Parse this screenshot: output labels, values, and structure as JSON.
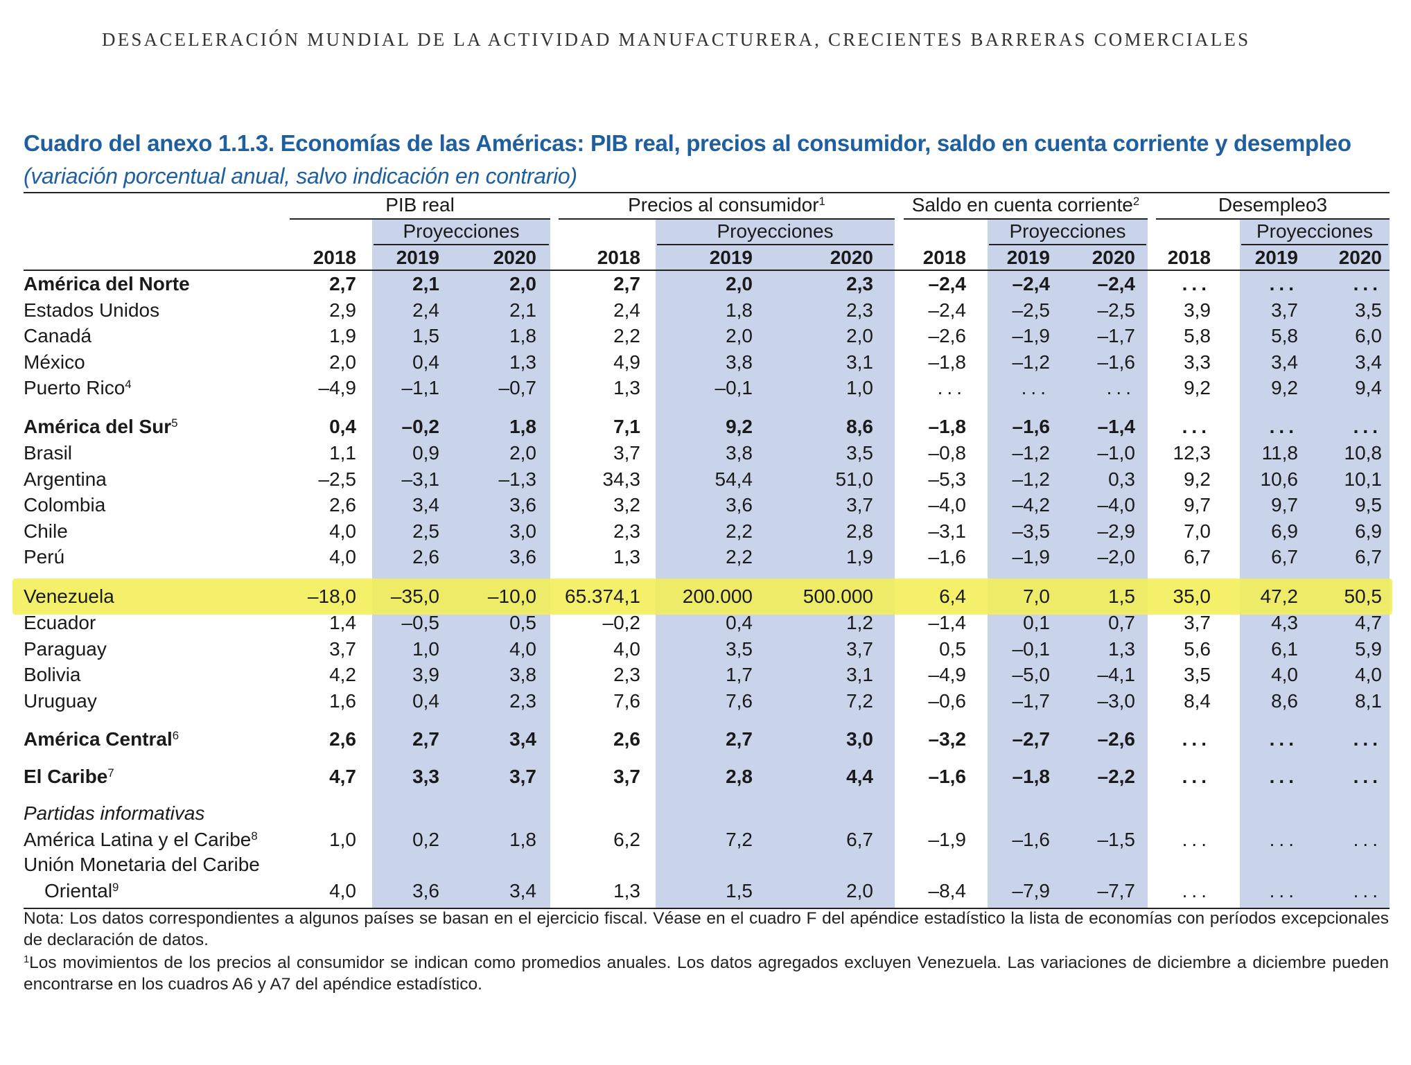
{
  "running_head": "DESACELERACIÓN MUNDIAL DE LA ACTIVIDAD MANUFACTURERA, CRECIENTES BARRERAS COMERCIALES",
  "title": "Cuadro del anexo 1.1.3. Economías de las Américas: PIB real, precios al consumidor, saldo en cuenta corriente y desempleo",
  "subtitle": "(variación porcentual anual, salvo indicación en contrario)",
  "groups": [
    {
      "label": "PIB real",
      "sup": ""
    },
    {
      "label": "Precios al consumidor",
      "sup": "1"
    },
    {
      "label": "Saldo en cuenta corriente",
      "sup": "2"
    },
    {
      "label": "Desempleo3",
      "sup": ""
    }
  ],
  "proj_label": "Proyecciones",
  "years": [
    "2018",
    "2019",
    "2020"
  ],
  "rows": [
    {
      "label": "América del Norte",
      "sup": "",
      "bold": true,
      "values": [
        "2,7",
        "2,1",
        "2,0",
        "2,7",
        "2,0",
        "2,3",
        "–2,4",
        "–2,4",
        "–2,4",
        "...",
        "...",
        "..."
      ]
    },
    {
      "label": "Estados Unidos",
      "sup": "",
      "values": [
        "2,9",
        "2,4",
        "2,1",
        "2,4",
        "1,8",
        "2,3",
        "–2,4",
        "–2,5",
        "–2,5",
        "3,9",
        "3,7",
        "3,5"
      ]
    },
    {
      "label": "Canadá",
      "sup": "",
      "values": [
        "1,9",
        "1,5",
        "1,8",
        "2,2",
        "2,0",
        "2,0",
        "–2,6",
        "–1,9",
        "–1,7",
        "5,8",
        "5,8",
        "6,0"
      ]
    },
    {
      "label": "México",
      "sup": "",
      "values": [
        "2,0",
        "0,4",
        "1,3",
        "4,9",
        "3,8",
        "3,1",
        "–1,8",
        "–1,2",
        "–1,6",
        "3,3",
        "3,4",
        "3,4"
      ]
    },
    {
      "label": "Puerto Rico",
      "sup": "4",
      "values": [
        "–4,9",
        "–1,1",
        "–0,7",
        "1,3",
        "–0,1",
        "1,0",
        "...",
        "...",
        "...",
        "9,2",
        "9,2",
        "9,4"
      ]
    },
    {
      "label": "América del Sur",
      "sup": "5",
      "bold": true,
      "values": [
        "0,4",
        "–0,2",
        "1,8",
        "7,1",
        "9,2",
        "8,6",
        "–1,8",
        "–1,6",
        "–1,4",
        "...",
        "...",
        "..."
      ]
    },
    {
      "label": "Brasil",
      "sup": "",
      "values": [
        "1,1",
        "0,9",
        "2,0",
        "3,7",
        "3,8",
        "3,5",
        "–0,8",
        "–1,2",
        "–1,0",
        "12,3",
        "11,8",
        "10,8"
      ]
    },
    {
      "label": "Argentina",
      "sup": "",
      "values": [
        "–2,5",
        "–3,1",
        "–1,3",
        "34,3",
        "54,4",
        "51,0",
        "–5,3",
        "–1,2",
        "0,3",
        "9,2",
        "10,6",
        "10,1"
      ]
    },
    {
      "label": "Colombia",
      "sup": "",
      "values": [
        "2,6",
        "3,4",
        "3,6",
        "3,2",
        "3,6",
        "3,7",
        "–4,0",
        "–4,2",
        "–4,0",
        "9,7",
        "9,7",
        "9,5"
      ]
    },
    {
      "label": "Chile",
      "sup": "",
      "values": [
        "4,0",
        "2,5",
        "3,0",
        "2,3",
        "2,2",
        "2,8",
        "–3,1",
        "–3,5",
        "–2,9",
        "7,0",
        "6,9",
        "6,9"
      ]
    },
    {
      "label": "Perú",
      "sup": "",
      "values": [
        "4,0",
        "2,6",
        "3,6",
        "1,3",
        "2,2",
        "1,9",
        "–1,6",
        "–1,9",
        "–2,0",
        "6,7",
        "6,7",
        "6,7"
      ]
    },
    {
      "label": "Venezuela",
      "sup": "",
      "highlight": true,
      "values": [
        "–18,0",
        "–35,0",
        "–10,0",
        "65.374,1",
        "200.000",
        "500.000",
        "6,4",
        "7,0",
        "1,5",
        "35,0",
        "47,2",
        "50,5"
      ]
    },
    {
      "label": "Ecuador",
      "sup": "",
      "values": [
        "1,4",
        "–0,5",
        "0,5",
        "–0,2",
        "0,4",
        "1,2",
        "–1,4",
        "0,1",
        "0,7",
        "3,7",
        "4,3",
        "4,7"
      ]
    },
    {
      "label": "Paraguay",
      "sup": "",
      "values": [
        "3,7",
        "1,0",
        "4,0",
        "4,0",
        "3,5",
        "3,7",
        "0,5",
        "–0,1",
        "1,3",
        "5,6",
        "6,1",
        "5,9"
      ]
    },
    {
      "label": "Bolivia",
      "sup": "",
      "values": [
        "4,2",
        "3,9",
        "3,8",
        "2,3",
        "1,7",
        "3,1",
        "–4,9",
        "–5,0",
        "–4,1",
        "3,5",
        "4,0",
        "4,0"
      ]
    },
    {
      "label": "Uruguay",
      "sup": "",
      "values": [
        "1,6",
        "0,4",
        "2,3",
        "7,6",
        "7,6",
        "7,2",
        "–0,6",
        "–1,7",
        "–3,0",
        "8,4",
        "8,6",
        "8,1"
      ]
    },
    {
      "label": "América Central",
      "sup": "6",
      "bold": true,
      "values": [
        "2,6",
        "2,7",
        "3,4",
        "2,6",
        "2,7",
        "3,0",
        "–3,2",
        "–2,7",
        "–2,6",
        "...",
        "...",
        "..."
      ]
    },
    {
      "label": "El Caribe",
      "sup": "7",
      "bold": true,
      "values": [
        "4,7",
        "3,3",
        "3,7",
        "3,7",
        "2,8",
        "4,4",
        "–1,6",
        "–1,8",
        "–2,2",
        "...",
        "...",
        "..."
      ]
    },
    {
      "label": "Partidas informativas",
      "sup": "",
      "italic": true,
      "values": []
    },
    {
      "label": "América Latina y el Caribe",
      "sup": "8",
      "values": [
        "1,0",
        "0,2",
        "1,8",
        "6,2",
        "7,2",
        "6,7",
        "–1,9",
        "–1,6",
        "–1,5",
        "...",
        "...",
        "..."
      ]
    },
    {
      "label": "Unión Monetaria del Caribe",
      "sup": "",
      "values": []
    },
    {
      "label": "Oriental",
      "sup": "9",
      "indent": true,
      "values": [
        "4,0",
        "3,6",
        "3,4",
        "1,3",
        "1,5",
        "2,0",
        "–8,4",
        "–7,9",
        "–7,7",
        "...",
        "...",
        "..."
      ]
    }
  ],
  "notes": [
    {
      "sup": "",
      "text": "Nota: Los datos correspondientes a algunos países se basan en el ejercicio fiscal. Véase en el cuadro F del apéndice estadístico la lista de economías con períodos excepcionales de declaración de datos."
    },
    {
      "sup": "1",
      "text": "Los movimientos de los precios al consumidor se indican como promedios anuales. Los datos agregados excluyen Venezuela. Las variaciones de diciembre a diciembre pueden encontrarse en los cuadros A6 y A7 del apéndice estadístico."
    }
  ],
  "colors": {
    "title": "#1f5fa0",
    "projection_shade": "#c9d3ea",
    "highlight": "#f3ee55"
  }
}
